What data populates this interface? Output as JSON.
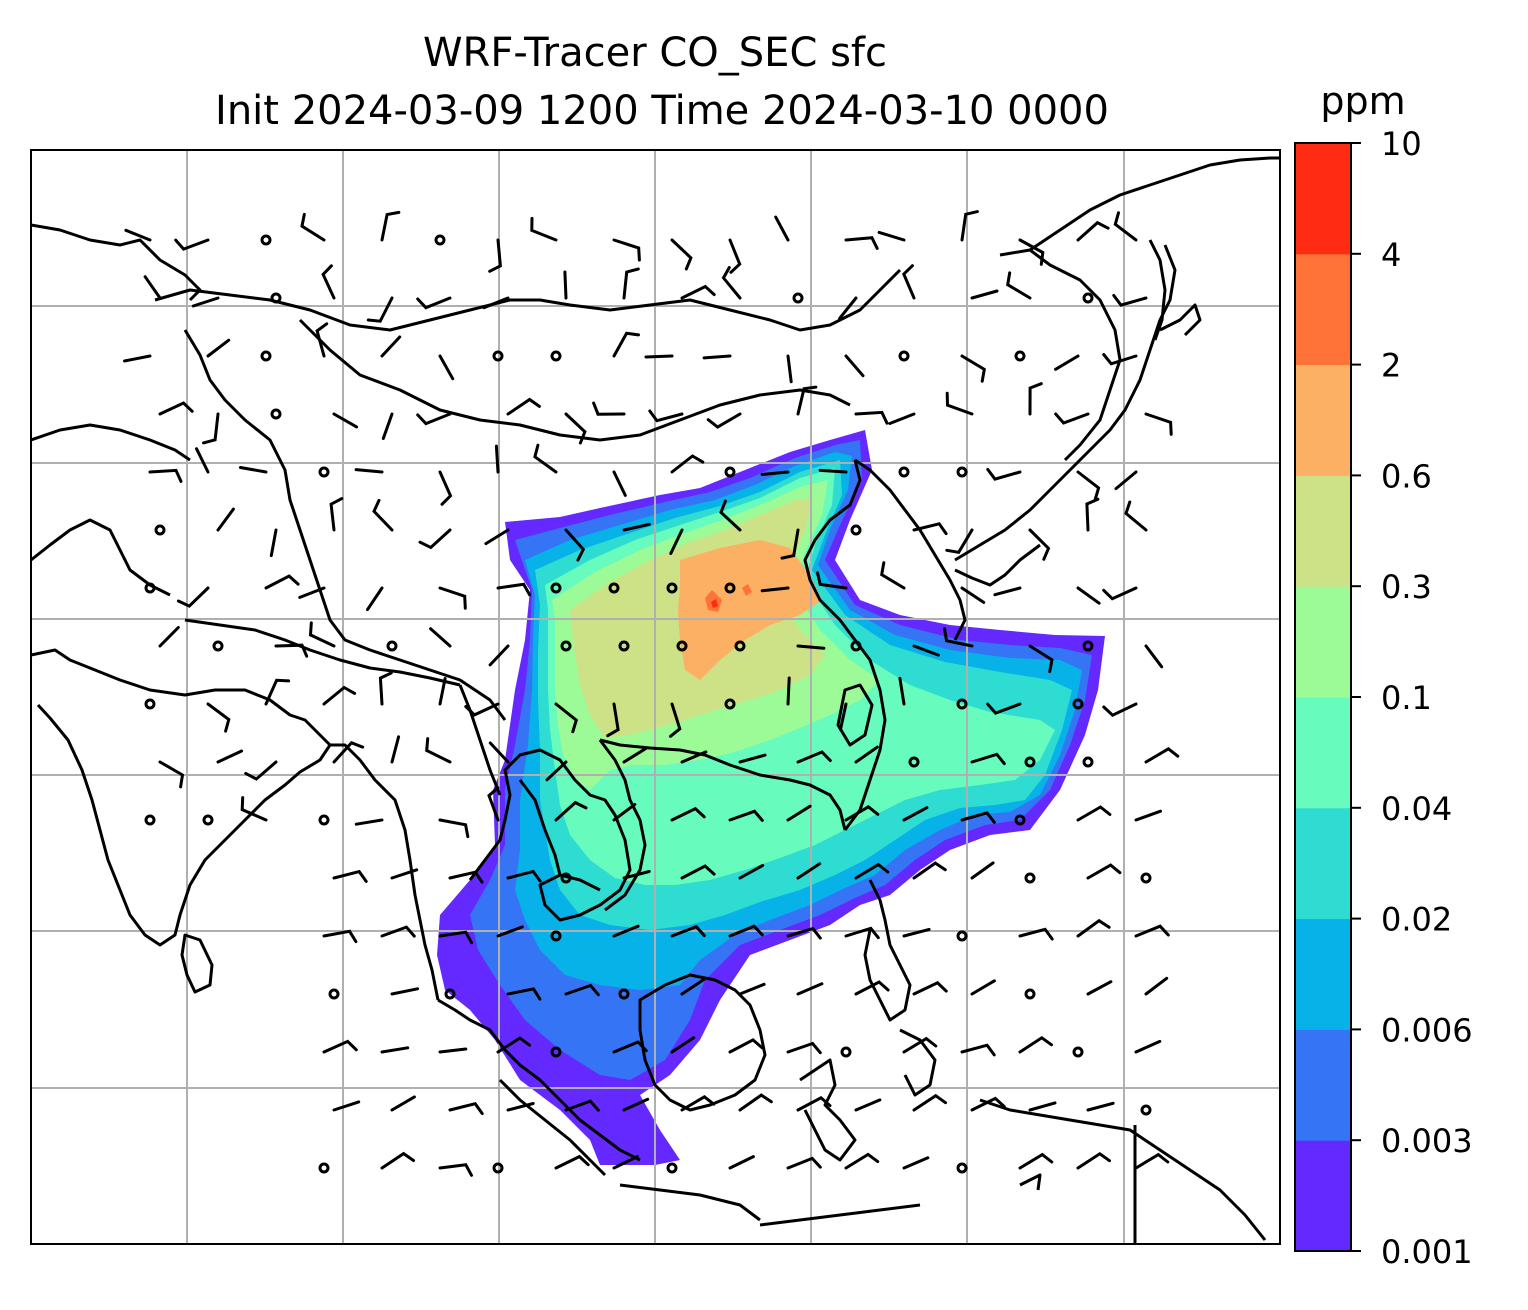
{
  "figure": {
    "title_line1": "WRF-Tracer CO_SEC sfc",
    "title_line2": "Init 2024-03-09 1200 Time 2024-03-10 0000"
  },
  "map": {
    "gridlines": true,
    "gridline_color": "#b0b0b0",
    "coastline_color": "#000000",
    "wind_barb_color": "#000000"
  },
  "colorbar": {
    "unit": "ppm",
    "ticks": [
      "0.001",
      "0.003",
      "0.006",
      "0.02",
      "0.04",
      "0.1",
      "0.3",
      "0.6",
      "2",
      "4",
      "10"
    ],
    "colors": [
      "#6329ff",
      "#3575f5",
      "#07b2e8",
      "#2fdcd2",
      "#67fbbe",
      "#9dfb97",
      "#cde286",
      "#fcb064",
      "#ff7238",
      "#ff2b13"
    ]
  }
}
